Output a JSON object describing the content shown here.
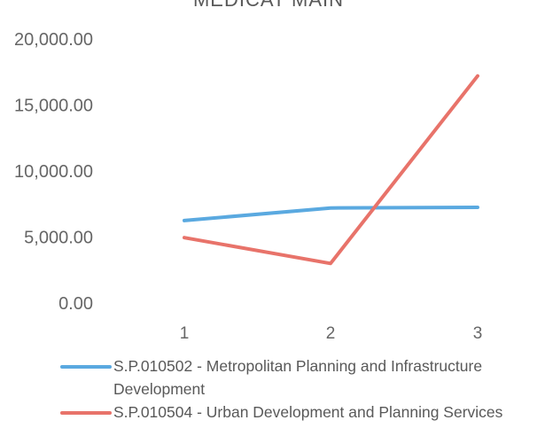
{
  "chart_data": {
    "type": "line",
    "title": "MEDICAT MAIN",
    "xlabel": "",
    "ylabel": "",
    "categories": [
      "1",
      "2",
      "3"
    ],
    "y_ticks": [
      "0.00",
      "5,000.00",
      "10,000.00",
      "15,000.00",
      "20,000.00"
    ],
    "ylim": [
      0,
      20000
    ],
    "grid": false,
    "legend_position": "bottom",
    "series": [
      {
        "name": "S.P.010502 - Metropolitan Planning and Infrastructure Development",
        "color": "#5aa9e0",
        "values": [
          6250,
          7200,
          7250
        ]
      },
      {
        "name": "S.P.010504 - Urban Development and Planning Services",
        "color": "#e8736a",
        "values": [
          4950,
          3000,
          17200
        ]
      }
    ]
  }
}
